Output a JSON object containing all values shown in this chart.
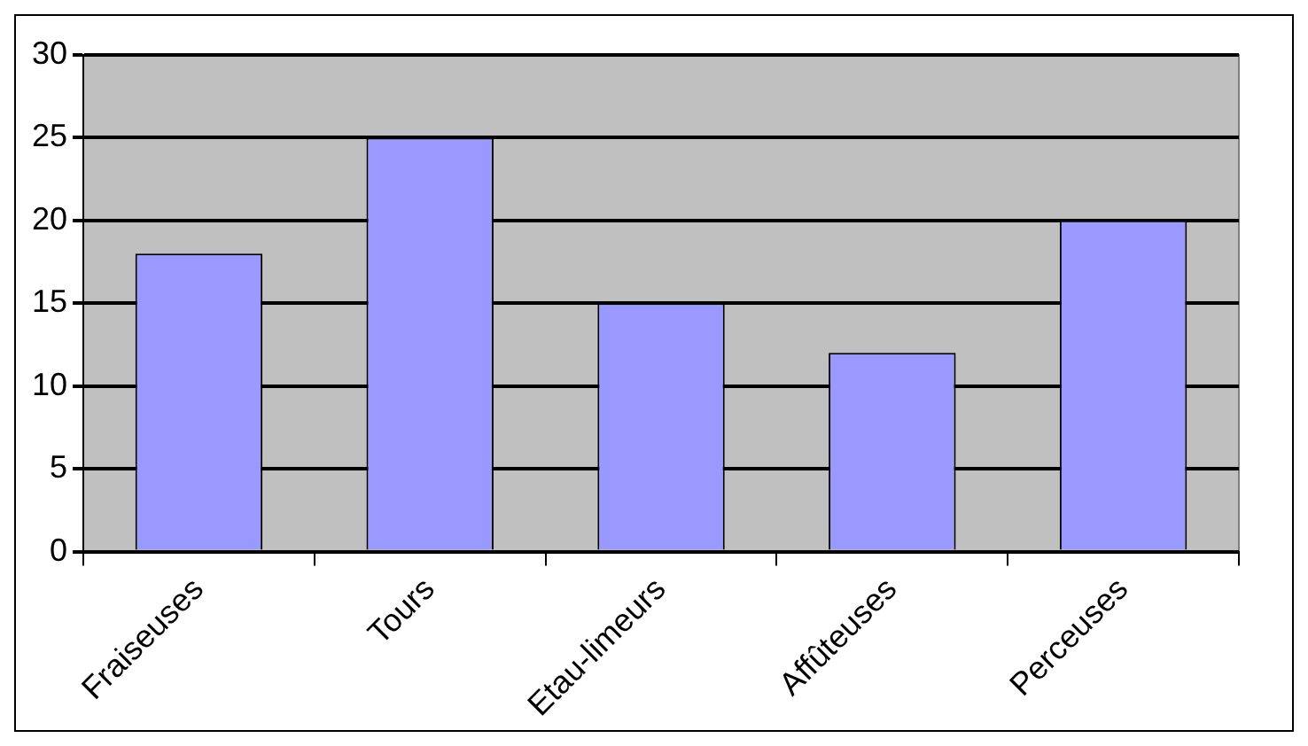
{
  "chart_data": {
    "type": "bar",
    "categories": [
      "Fraiseuses",
      "Tours",
      "Etau-limeurs",
      "Affûteuses",
      "Perceuses"
    ],
    "values": [
      18,
      25,
      15,
      12,
      20
    ],
    "color": "#9999ff",
    "ylim": [
      0,
      30
    ],
    "yticks": [
      0,
      5,
      10,
      15,
      20,
      25,
      30
    ],
    "grid": "y",
    "legend": false
  }
}
